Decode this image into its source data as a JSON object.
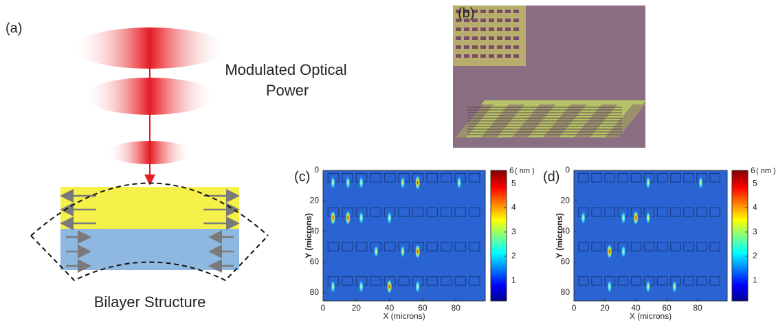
{
  "panels": {
    "a": "(a)",
    "b": "(b)",
    "c": "(c)",
    "d": "(d)"
  },
  "diagram": {
    "beam_label": [
      "Modulated Optical",
      "Power"
    ],
    "structure_label": "Bilayer Structure"
  },
  "maps": [
    {
      "x_label": "X (microns)",
      "y_label": "Y (microns)",
      "x_ticks": [
        0,
        20,
        40,
        60,
        80
      ],
      "y_ticks": [
        0,
        20,
        40,
        60,
        80
      ],
      "colorbar_ticks": [
        1,
        2,
        3,
        4,
        5
      ],
      "colorbar_top": "6",
      "colorbar_unit": "( nm )"
    },
    {
      "x_label": "X (microns)",
      "y_label": "Y (microns)",
      "x_ticks": [
        0,
        20,
        40,
        60,
        80
      ],
      "y_ticks": [
        0,
        20,
        40,
        60,
        80
      ],
      "colorbar_ticks": [
        1,
        2,
        3,
        4,
        5
      ],
      "colorbar_top": "6",
      "colorbar_unit": "( nm )"
    }
  ]
}
